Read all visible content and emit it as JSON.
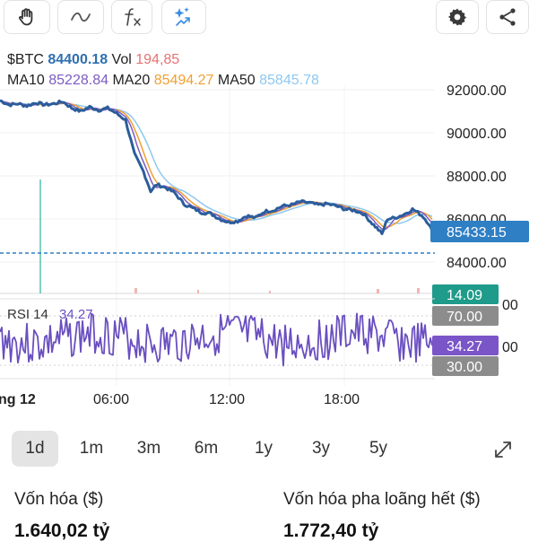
{
  "toolbar": {
    "tools": [
      "hand-icon",
      "curve-icon",
      "function-icon",
      "sparkle-icon"
    ],
    "actions": [
      "gear-icon",
      "share-icon"
    ]
  },
  "legend": {
    "symbol": "$BTC",
    "price": "84400.18",
    "vol_label": "Vol",
    "vol_value": "194,85",
    "ma10_label": "MA10",
    "ma10_value": "85228.84",
    "ma20_label": "MA20",
    "ma20_value": "85494.27",
    "ma50_label": "MA50",
    "ma50_value": "85845.78"
  },
  "price_axis": {
    "ticks": [
      "92000.00",
      "90000.00",
      "88000.00",
      "86000.00",
      "84000.00"
    ],
    "current_badge": "85433.15"
  },
  "volume_badge": "14.09",
  "rsi": {
    "label": "RSI 14",
    "value": "34.27",
    "upper_badge": "70.00",
    "lower_badge": "30.00",
    "axis_partial_1": "00",
    "axis_partial_2": "00"
  },
  "time_axis": [
    "ng 12",
    "06:00",
    "12:00",
    "18:00"
  ],
  "timeframes": [
    "1d",
    "1m",
    "3m",
    "6m",
    "1y",
    "3y",
    "5y"
  ],
  "active_timeframe": "1d",
  "stats": {
    "market_cap_label": "Vốn hóa ($)",
    "market_cap_value": "1.640,02 tỷ",
    "fdv_label": "Vốn hóa pha loãng hết ($)",
    "fdv_value": "1.772,40 tỷ"
  },
  "colors": {
    "price_line": "#2b5d9b",
    "ma10": "#7b5cc4",
    "ma20": "#f0a030",
    "ma50": "#8ec8f0",
    "rsi_line": "#6a4fc0",
    "badge_blue": "#2f7fc4",
    "badge_green": "#1e9b8a",
    "badge_purple": "#7a55c8",
    "badge_gray": "#8c8c8c",
    "dashed_line": "#2f7fc4"
  },
  "chart_data": {
    "type": "line",
    "ylim": [
      83600,
      92600
    ],
    "price_points": [
      [
        0,
        91500
      ],
      [
        10,
        91300
      ],
      [
        20,
        91350
      ],
      [
        30,
        91250
      ],
      [
        40,
        91400
      ],
      [
        50,
        91300
      ],
      [
        60,
        91350
      ],
      [
        70,
        91450
      ],
      [
        80,
        91150
      ],
      [
        90,
        91000
      ],
      [
        100,
        91200
      ],
      [
        110,
        91050
      ],
      [
        120,
        91150
      ],
      [
        130,
        90900
      ],
      [
        140,
        90600
      ],
      [
        150,
        89000
      ],
      [
        160,
        88200
      ],
      [
        168,
        87300
      ],
      [
        175,
        87600
      ],
      [
        185,
        87450
      ],
      [
        195,
        87200
      ],
      [
        205,
        86700
      ],
      [
        215,
        86500
      ],
      [
        225,
        86300
      ],
      [
        235,
        86250
      ],
      [
        245,
        86000
      ],
      [
        255,
        85850
      ],
      [
        265,
        85900
      ],
      [
        275,
        86150
      ],
      [
        285,
        86050
      ],
      [
        295,
        86350
      ],
      [
        305,
        86400
      ],
      [
        315,
        86600
      ],
      [
        325,
        86650
      ],
      [
        335,
        86800
      ],
      [
        345,
        86750
      ],
      [
        355,
        86650
      ],
      [
        365,
        86700
      ],
      [
        375,
        86600
      ],
      [
        385,
        86450
      ],
      [
        395,
        86400
      ],
      [
        405,
        86250
      ],
      [
        415,
        85800
      ],
      [
        422,
        85500
      ],
      [
        426,
        85300
      ],
      [
        432,
        86000
      ],
      [
        440,
        86050
      ],
      [
        450,
        86200
      ],
      [
        460,
        86450
      ],
      [
        466,
        86300
      ],
      [
        472,
        86100
      ],
      [
        478,
        85800
      ],
      [
        482,
        85433
      ]
    ]
  }
}
